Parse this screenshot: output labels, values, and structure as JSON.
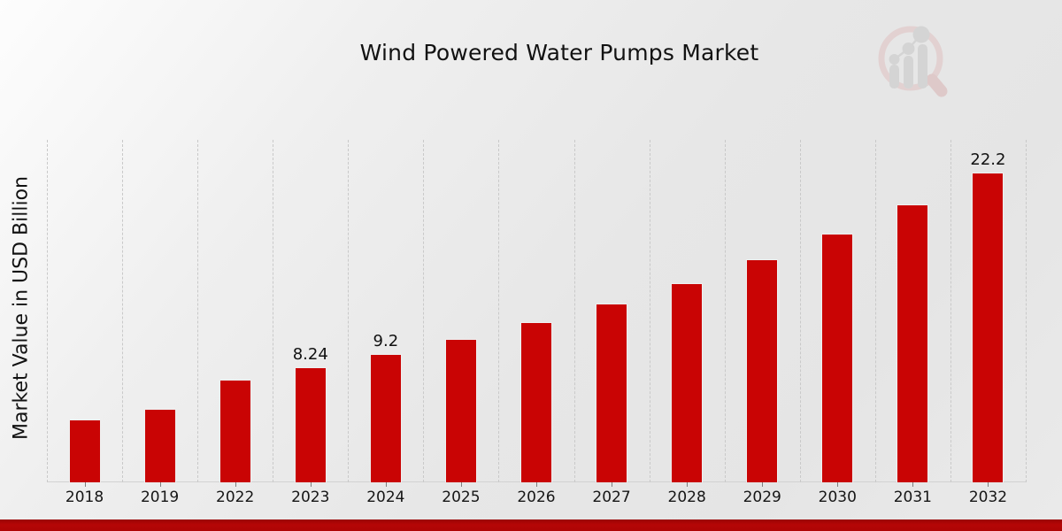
{
  "page": {
    "title": "Wind Powered Water Pumps Market",
    "accent_bar_color": "#ad0505",
    "background_base_color": "#e9e9e9"
  },
  "logo": {
    "label": "magnifier-bar-chart-watermark",
    "circle_color": "#dfc0c0",
    "handle_color": "#d8b2b2",
    "bars_color": "#c7c7c7"
  },
  "chart_data": {
    "type": "bar",
    "title": "Wind Powered Water Pumps Market",
    "xlabel": "",
    "ylabel": "Market Value in USD Billion",
    "categories": [
      "2018",
      "2019",
      "2022",
      "2023",
      "2024",
      "2025",
      "2026",
      "2027",
      "2028",
      "2029",
      "2030",
      "2031",
      "2032"
    ],
    "values": [
      4.5,
      5.27,
      7.38,
      8.24,
      9.2,
      10.27,
      11.47,
      12.8,
      14.3,
      15.96,
      17.82,
      19.9,
      22.2
    ],
    "visible_value_labels": {
      "2023": "8.24",
      "2024": "9.2",
      "2032": "22.2"
    },
    "bar_color": "#c90404",
    "ylim": [
      0,
      24.54
    ],
    "grid": "vertical dashed lines at category boundaries",
    "legend": "none"
  }
}
